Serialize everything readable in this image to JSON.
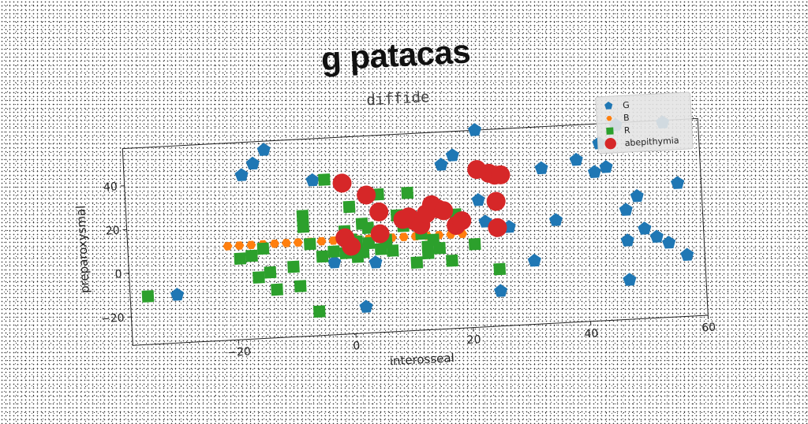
{
  "chart_data": {
    "type": "scatter",
    "title": "g patacas",
    "subtitle": "diffide",
    "xlabel": "interosseal",
    "ylabel": "preparoxysmal",
    "xlim": [
      -38,
      60
    ],
    "ylim": [
      -33,
      57
    ],
    "xticks": [
      -20,
      0,
      20,
      40,
      60
    ],
    "yticks": [
      -20,
      0,
      20,
      40
    ],
    "grid": false,
    "legend_position": "top-right",
    "series": [
      {
        "name": "G",
        "marker": "pentagon",
        "color": "#1f77b4",
        "points": [
          [
            -30,
            -11
          ],
          [
            -18,
            42
          ],
          [
            -16,
            47
          ],
          [
            -14,
            53
          ],
          [
            -6,
            38
          ],
          [
            2,
            -21
          ],
          [
            4,
            -1
          ],
          [
            16,
            42
          ],
          [
            18,
            46
          ],
          [
            22,
            57
          ],
          [
            22,
            25
          ],
          [
            23,
            15
          ],
          [
            25,
            -17
          ],
          [
            27,
            12
          ],
          [
            31,
            -4
          ],
          [
            33,
            38
          ],
          [
            35,
            14
          ],
          [
            39,
            41
          ],
          [
            42,
            35
          ],
          [
            44,
            37
          ],
          [
            43,
            48
          ],
          [
            46,
            56
          ],
          [
            47,
            17
          ],
          [
            47,
            3
          ],
          [
            47,
            -15
          ],
          [
            49,
            23
          ],
          [
            50,
            8
          ],
          [
            52,
            4
          ],
          [
            54,
            1
          ],
          [
            54,
            56
          ],
          [
            56,
            28
          ],
          [
            57,
            -5
          ],
          [
            -3,
            0
          ]
        ]
      },
      {
        "name": "B",
        "marker": "hexagon",
        "color": "#ff7f0e",
        "points": [
          [
            -21,
            10
          ],
          [
            -19,
            10
          ],
          [
            -17,
            10
          ],
          [
            -15,
            10
          ],
          [
            -13,
            10
          ],
          [
            -11,
            10
          ],
          [
            -9,
            10
          ],
          [
            -7,
            10
          ],
          [
            -5,
            10
          ],
          [
            -3,
            10
          ],
          [
            -1,
            10
          ],
          [
            1,
            10
          ],
          [
            3,
            10
          ],
          [
            5,
            10
          ],
          [
            7,
            10
          ],
          [
            9,
            10
          ],
          [
            11,
            10
          ],
          [
            13,
            10
          ],
          [
            15,
            10
          ],
          [
            17,
            10
          ],
          [
            19,
            10
          ]
        ]
      },
      {
        "name": "R",
        "marker": "square",
        "color": "#2ca02c",
        "points": [
          [
            -35,
            -11
          ],
          [
            -19,
            4
          ],
          [
            -17,
            5
          ],
          [
            -16,
            -5
          ],
          [
            -15,
            8
          ],
          [
            -14,
            -3
          ],
          [
            -13,
            -11
          ],
          [
            -10,
            -1
          ],
          [
            -9,
            -10
          ],
          [
            -8,
            22
          ],
          [
            -8,
            17
          ],
          [
            -7,
            9
          ],
          [
            -6,
            -22
          ],
          [
            -5,
            3
          ],
          [
            -4,
            38
          ],
          [
            -3,
            5
          ],
          [
            -1,
            4
          ],
          [
            -1,
            14
          ],
          [
            0,
            10
          ],
          [
            0,
            25
          ],
          [
            1,
            9
          ],
          [
            1,
            2
          ],
          [
            2,
            17
          ],
          [
            2,
            4
          ],
          [
            3,
            15
          ],
          [
            3,
            8
          ],
          [
            5,
            30
          ],
          [
            5,
            5
          ],
          [
            6,
            9
          ],
          [
            7,
            4
          ],
          [
            8,
            20
          ],
          [
            9,
            15
          ],
          [
            10,
            30
          ],
          [
            11,
            -2
          ],
          [
            12,
            11
          ],
          [
            13,
            5
          ],
          [
            13,
            2
          ],
          [
            14,
            8
          ],
          [
            15,
            4
          ],
          [
            17,
            -2
          ],
          [
            18,
            19
          ],
          [
            21,
            5
          ],
          [
            25,
            -7
          ]
        ]
      },
      {
        "name": "abepithymia",
        "marker": "circle",
        "color": "#d62728",
        "points": [
          [
            -1,
            11
          ],
          [
            0,
            7
          ],
          [
            -1,
            36
          ],
          [
            3,
            30
          ],
          [
            5,
            22
          ],
          [
            5,
            12
          ],
          [
            9,
            18
          ],
          [
            10,
            19
          ],
          [
            11,
            17
          ],
          [
            12,
            15
          ],
          [
            13,
            20
          ],
          [
            14,
            24
          ],
          [
            15,
            22
          ],
          [
            16,
            21
          ],
          [
            18,
            14
          ],
          [
            19,
            16
          ],
          [
            22,
            39
          ],
          [
            24,
            37
          ],
          [
            25,
            36
          ],
          [
            26,
            36
          ],
          [
            25,
            24
          ],
          [
            25,
            12
          ]
        ]
      }
    ]
  }
}
